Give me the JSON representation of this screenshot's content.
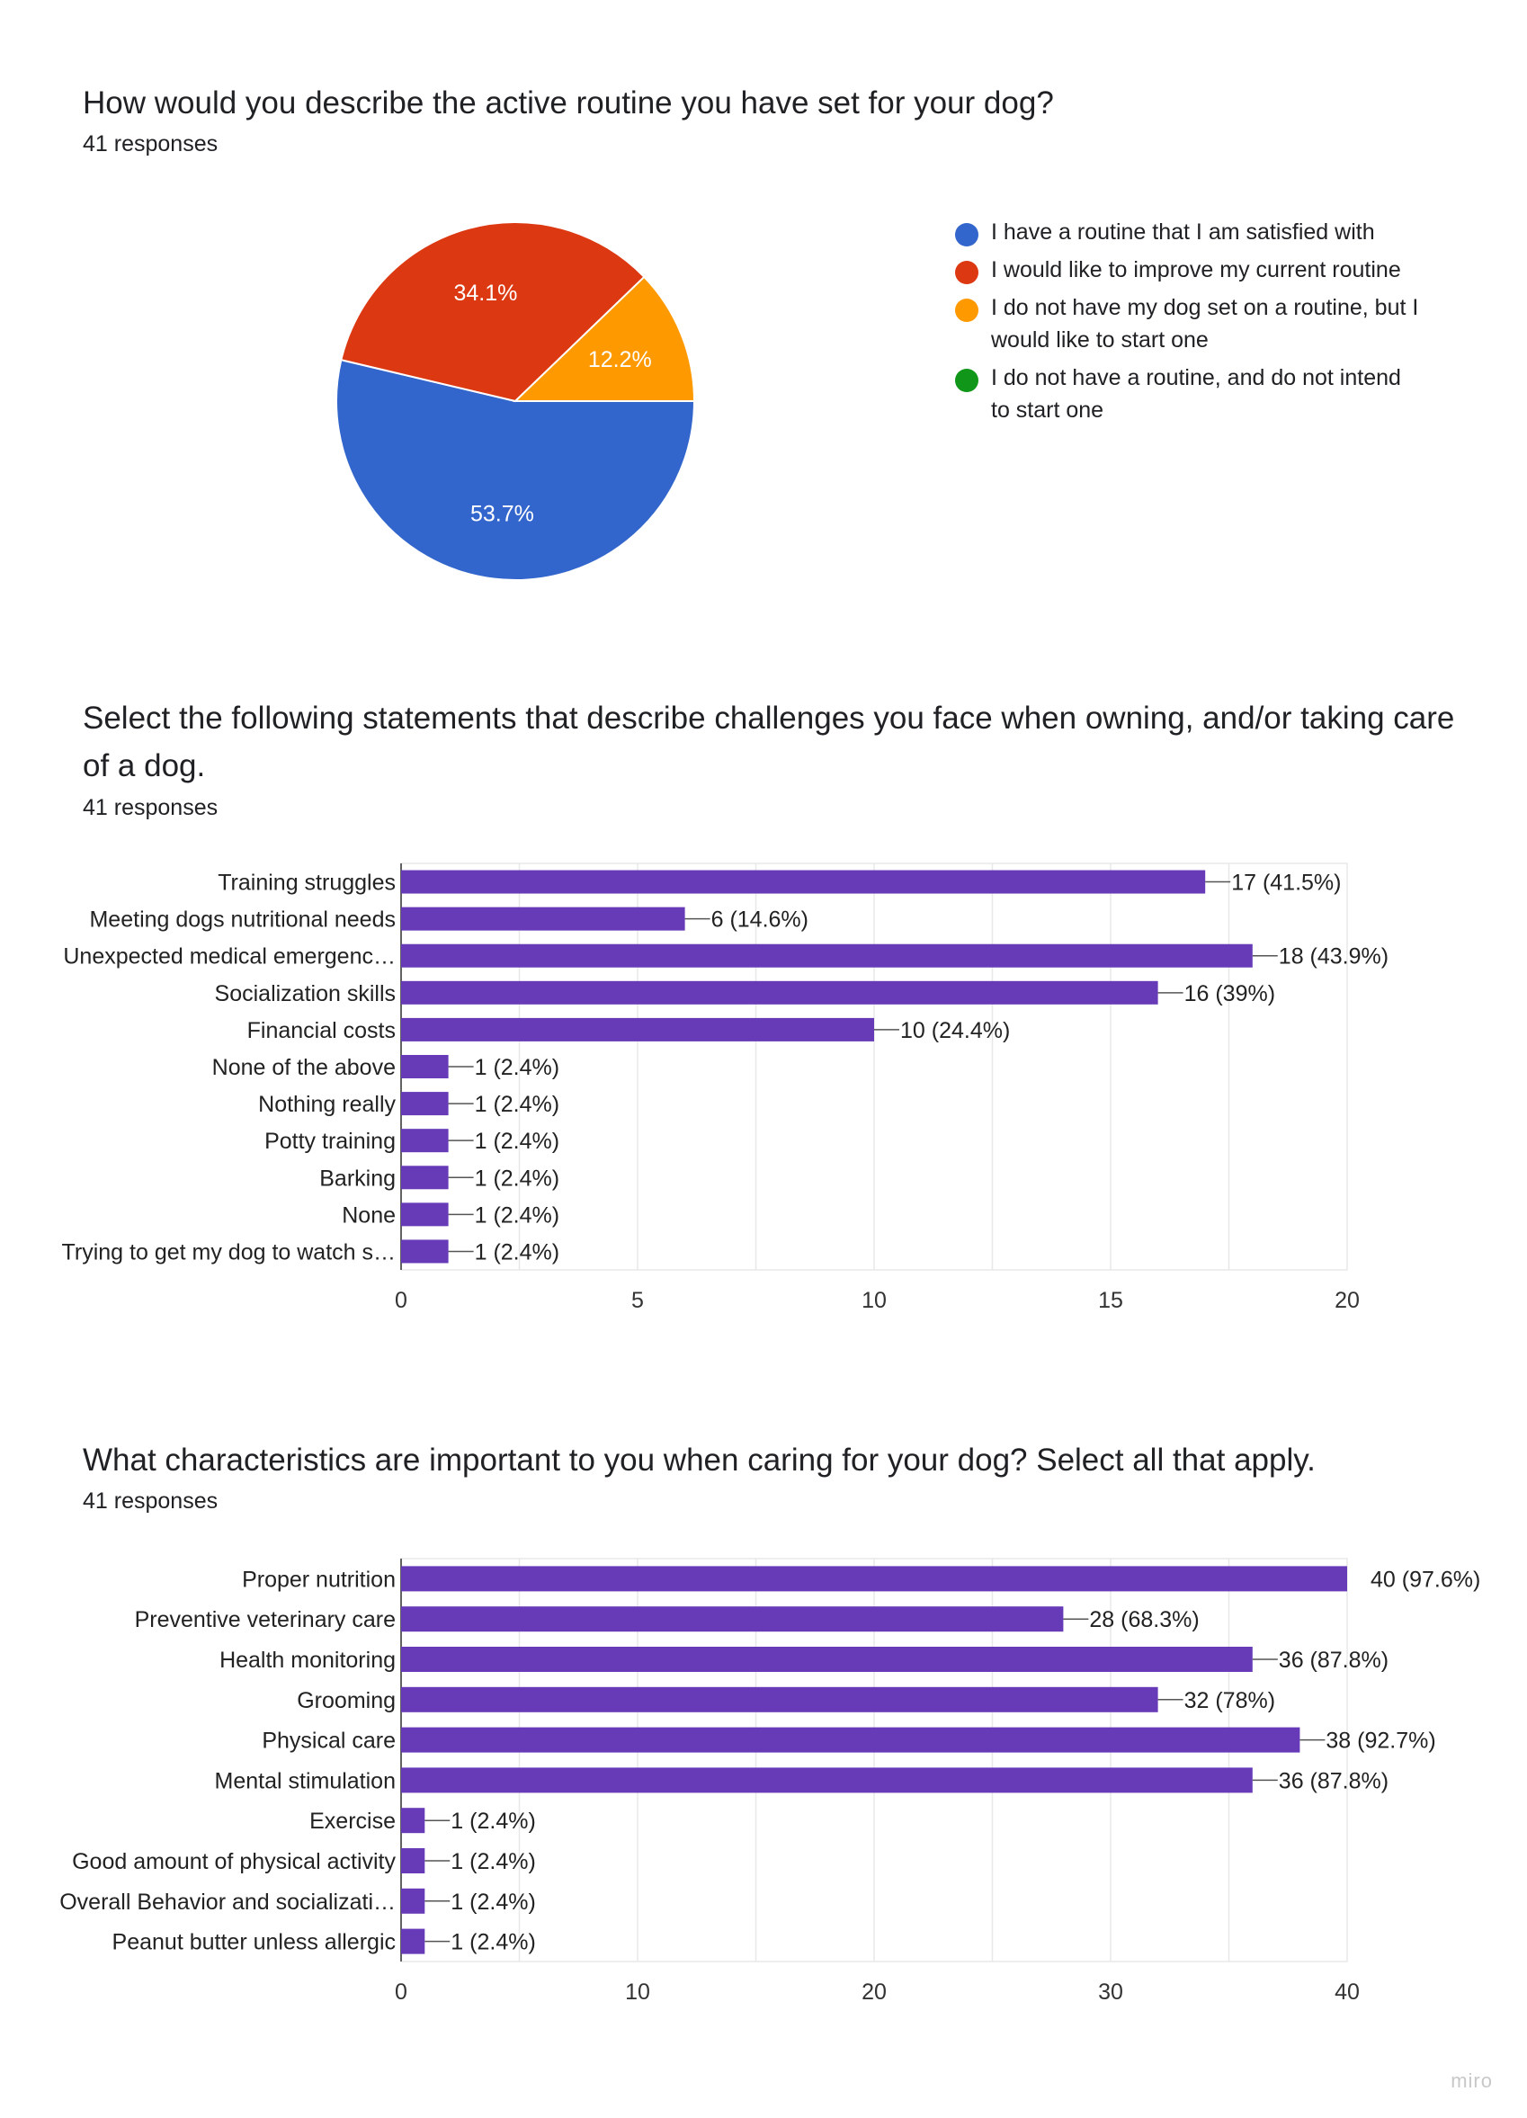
{
  "question1": {
    "title": "How would you describe the active routine you have set for your dog?",
    "responses": "41 responses"
  },
  "question2": {
    "title": "Select the following statements that describe challenges you face when owning, and/or taking care of a dog.",
    "responses": "41 responses"
  },
  "question3": {
    "title": "What characteristics are important to you when caring for your dog? Select all that apply.",
    "responses": "41 responses"
  },
  "watermark": "miro",
  "colors": {
    "blue": "#3366cc",
    "red": "#dc3912",
    "orange": "#ff9900",
    "green": "#109618",
    "bar": "#673ab7",
    "grid": "#e8e8e8",
    "axis": "#333333"
  },
  "chart_data": [
    {
      "type": "pie",
      "slices": [
        {
          "label": "I have a routine that I am satisfied with",
          "value": 53.7,
          "display": "53.7%",
          "color": "#3366cc"
        },
        {
          "label": "I would like to improve my current routine",
          "value": 34.1,
          "display": "34.1%",
          "color": "#dc3912"
        },
        {
          "label": "I do not have my dog set on a routine, but I would like to start one",
          "value": 12.2,
          "display": "12.2%",
          "color": "#ff9900"
        },
        {
          "label": "I do not have a routine, and do not intend to start one",
          "value": 0,
          "display": "",
          "color": "#109618"
        }
      ],
      "legend_position": "right"
    },
    {
      "type": "bar",
      "orientation": "horizontal",
      "categories": [
        "Training struggles",
        "Meeting dogs nutritional needs",
        "Unexpected medical emergenc…",
        "Socialization skills",
        "Financial costs",
        "None of the above",
        "Nothing really",
        "Potty training",
        "Barking",
        "None",
        "Trying to get my dog to watch s…"
      ],
      "values": [
        17,
        6,
        18,
        16,
        10,
        1,
        1,
        1,
        1,
        1,
        1
      ],
      "labels": [
        "17 (41.5%)",
        "6 (14.6%)",
        "18 (43.9%)",
        "16 (39%)",
        "10 (24.4%)",
        "1 (2.4%)",
        "1 (2.4%)",
        "1 (2.4%)",
        "1 (2.4%)",
        "1 (2.4%)",
        "1 (2.4%)"
      ],
      "xlim": [
        0,
        20
      ],
      "xticks": [
        0,
        5,
        10,
        15,
        20
      ],
      "grid": true
    },
    {
      "type": "bar",
      "orientation": "horizontal",
      "categories": [
        "Proper nutrition",
        "Preventive veterinary care",
        "Health monitoring",
        "Grooming",
        "Physical care",
        "Mental stimulation",
        "Exercise",
        "Good amount of physical activity",
        "Overall Behavior and socializati…",
        "Peanut butter unless allergic"
      ],
      "values": [
        40,
        28,
        36,
        32,
        38,
        36,
        1,
        1,
        1,
        1
      ],
      "labels": [
        "40 (97.6%)",
        "28 (68.3%)",
        "36 (87.8%)",
        "32 (78%)",
        "38 (92.7%)",
        "36 (87.8%)",
        "1 (2.4%)",
        "1 (2.4%)",
        "1 (2.4%)",
        "1 (2.4%)"
      ],
      "xlim": [
        0,
        40
      ],
      "xticks": [
        0,
        10,
        20,
        30,
        40
      ],
      "grid": true
    }
  ]
}
